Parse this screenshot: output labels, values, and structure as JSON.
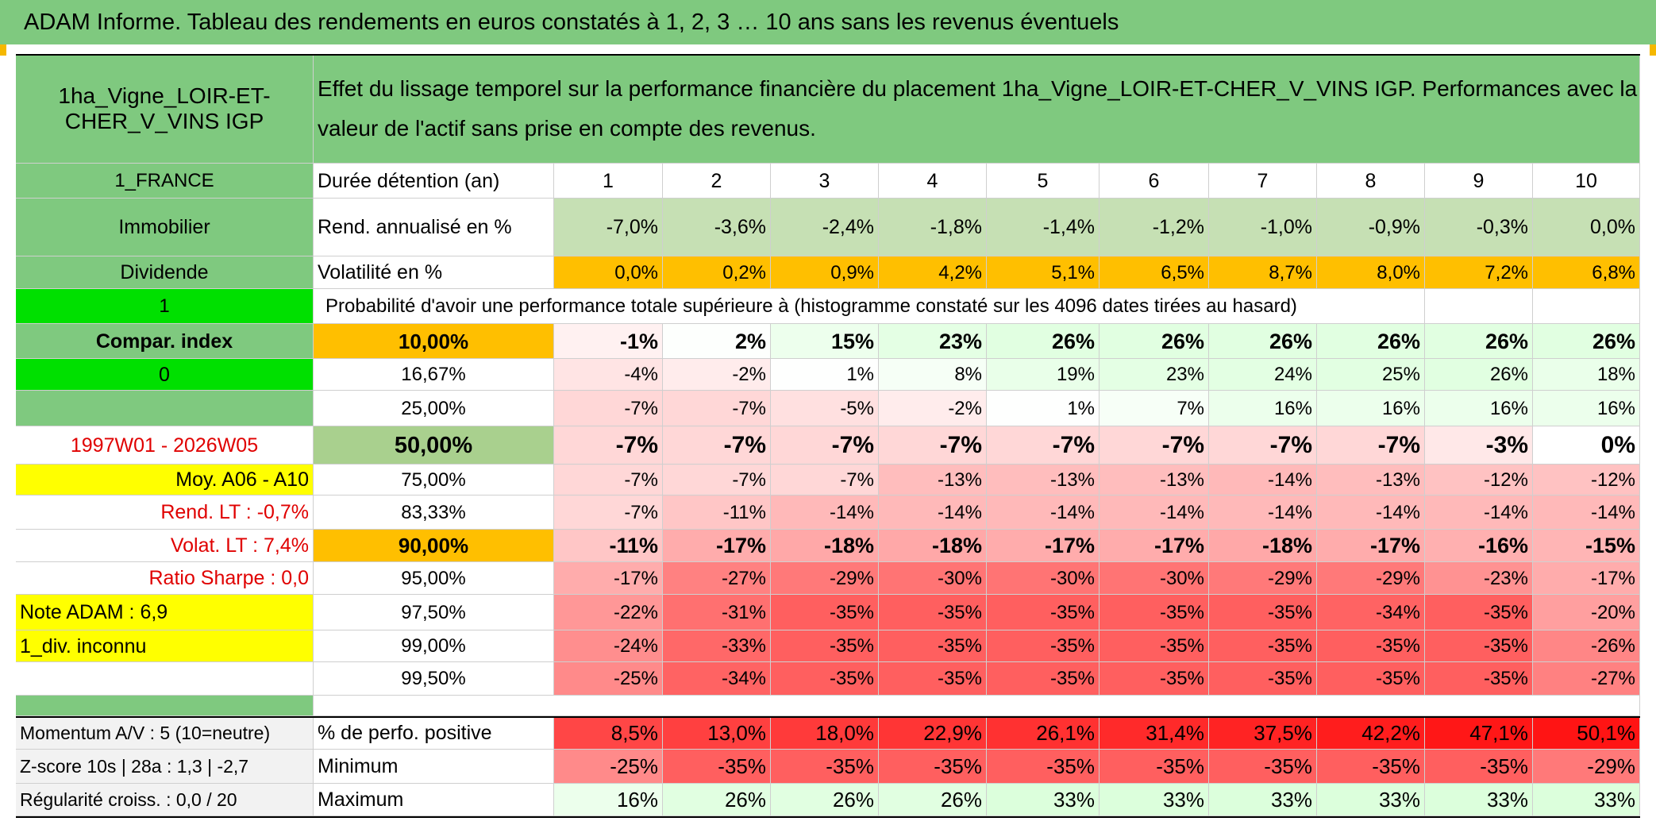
{
  "header": {
    "title": "ADAM Informe. Tableau des rendements en euros constatés à 1, 2, 3 … 10 ans sans les revenus éventuels"
  },
  "colors": {
    "green_header": "#7fc97f",
    "bright_green": "#00e000",
    "yellow": "#ffff00",
    "orange": "#ffbf00",
    "light_green_rend": "#c6e0b4",
    "red_text": "#e00000"
  },
  "asset": {
    "name": "1ha_Vigne_LOIR-ET-CHER_V_VINS IGP",
    "description": "Effet du lissage temporel sur la performance financière du placement 1ha_Vigne_LOIR-ET-CHER_V_VINS IGP. Performances avec la valeur de l'actif sans prise en compte des revenus.",
    "country": "1_FRANCE",
    "category": "Immobilier",
    "dividend_label": "Dividende",
    "dividend_value": "1",
    "compar_label": "Compar. index",
    "compar_value": "0",
    "period": "1997W01 - 2026W05",
    "moy": "Moy. A06 - A10",
    "rend_lt": "Rend. LT :   -0,7%",
    "volat_lt": "Volat. LT :   7,4%",
    "sharpe": "Ratio Sharpe :    0,0",
    "note": "Note ADAM : 6,9",
    "div": "1_div. inconnu"
  },
  "row_labels": {
    "duration": "Durée détention (an)",
    "rend": "Rend. annualisé en %",
    "vol": "Volatilité en %",
    "prob": "Probabilité d'avoir une performance totale supérieure à (histogramme constaté sur les 4096 dates tirées au hasard)"
  },
  "durations": [
    "1",
    "2",
    "3",
    "4",
    "5",
    "6",
    "7",
    "8",
    "9",
    "10"
  ],
  "rend_values": [
    "-7,0%",
    "-3,6%",
    "-2,4%",
    "-1,8%",
    "-1,4%",
    "-1,2%",
    "-1,0%",
    "-0,9%",
    "-0,3%",
    "0,0%"
  ],
  "vol_values": [
    "0,0%",
    "0,2%",
    "0,9%",
    "4,2%",
    "5,1%",
    "6,5%",
    "8,7%",
    "8,0%",
    "7,2%",
    "6,8%"
  ],
  "percentiles": [
    {
      "p": "10,00%",
      "values": [
        "-1%",
        "2%",
        "15%",
        "23%",
        "26%",
        "26%",
        "26%",
        "26%",
        "26%",
        "26%"
      ]
    },
    {
      "p": "16,67%",
      "values": [
        "-4%",
        "-2%",
        "1%",
        "8%",
        "19%",
        "23%",
        "24%",
        "25%",
        "26%",
        "18%"
      ]
    },
    {
      "p": "25,00%",
      "values": [
        "-7%",
        "-7%",
        "-5%",
        "-2%",
        "1%",
        "7%",
        "16%",
        "16%",
        "16%",
        "16%"
      ]
    },
    {
      "p": "50,00%",
      "values": [
        "-7%",
        "-7%",
        "-7%",
        "-7%",
        "-7%",
        "-7%",
        "-7%",
        "-7%",
        "-3%",
        "0%"
      ]
    },
    {
      "p": "75,00%",
      "values": [
        "-7%",
        "-7%",
        "-7%",
        "-13%",
        "-13%",
        "-13%",
        "-14%",
        "-13%",
        "-12%",
        "-12%"
      ]
    },
    {
      "p": "83,33%",
      "values": [
        "-7%",
        "-11%",
        "-14%",
        "-14%",
        "-14%",
        "-14%",
        "-14%",
        "-14%",
        "-14%",
        "-14%"
      ]
    },
    {
      "p": "90,00%",
      "values": [
        "-11%",
        "-17%",
        "-18%",
        "-18%",
        "-17%",
        "-17%",
        "-18%",
        "-17%",
        "-16%",
        "-15%"
      ]
    },
    {
      "p": "95,00%",
      "values": [
        "-17%",
        "-27%",
        "-29%",
        "-30%",
        "-30%",
        "-30%",
        "-29%",
        "-29%",
        "-23%",
        "-17%"
      ]
    },
    {
      "p": "97,50%",
      "values": [
        "-22%",
        "-31%",
        "-35%",
        "-35%",
        "-35%",
        "-35%",
        "-35%",
        "-34%",
        "-35%",
        "-20%"
      ]
    },
    {
      "p": "99,00%",
      "values": [
        "-24%",
        "-33%",
        "-35%",
        "-35%",
        "-35%",
        "-35%",
        "-35%",
        "-35%",
        "-35%",
        "-26%"
      ]
    },
    {
      "p": "99,50%",
      "values": [
        "-25%",
        "-34%",
        "-35%",
        "-35%",
        "-35%",
        "-35%",
        "-35%",
        "-35%",
        "-35%",
        "-27%"
      ]
    }
  ],
  "bottom": {
    "momentum": "Momentum A/V : 5 (10=neutre)",
    "zscore": "Z-score 10s | 28a : 1,3 | -2,7",
    "regularite": "Régularité croiss. : 0,0 / 20",
    "positive_label": "% de perfo. positive",
    "min_label": "Minimum",
    "max_label": "Maximum",
    "positive_values": [
      "8,5%",
      "13,0%",
      "18,0%",
      "22,9%",
      "26,1%",
      "31,4%",
      "37,5%",
      "42,2%",
      "47,1%",
      "50,1%"
    ],
    "min_values": [
      "-25%",
      "-35%",
      "-35%",
      "-35%",
      "-35%",
      "-35%",
      "-35%",
      "-35%",
      "-35%",
      "-29%"
    ],
    "max_values": [
      "16%",
      "26%",
      "26%",
      "26%",
      "33%",
      "33%",
      "33%",
      "33%",
      "33%",
      "33%"
    ]
  }
}
